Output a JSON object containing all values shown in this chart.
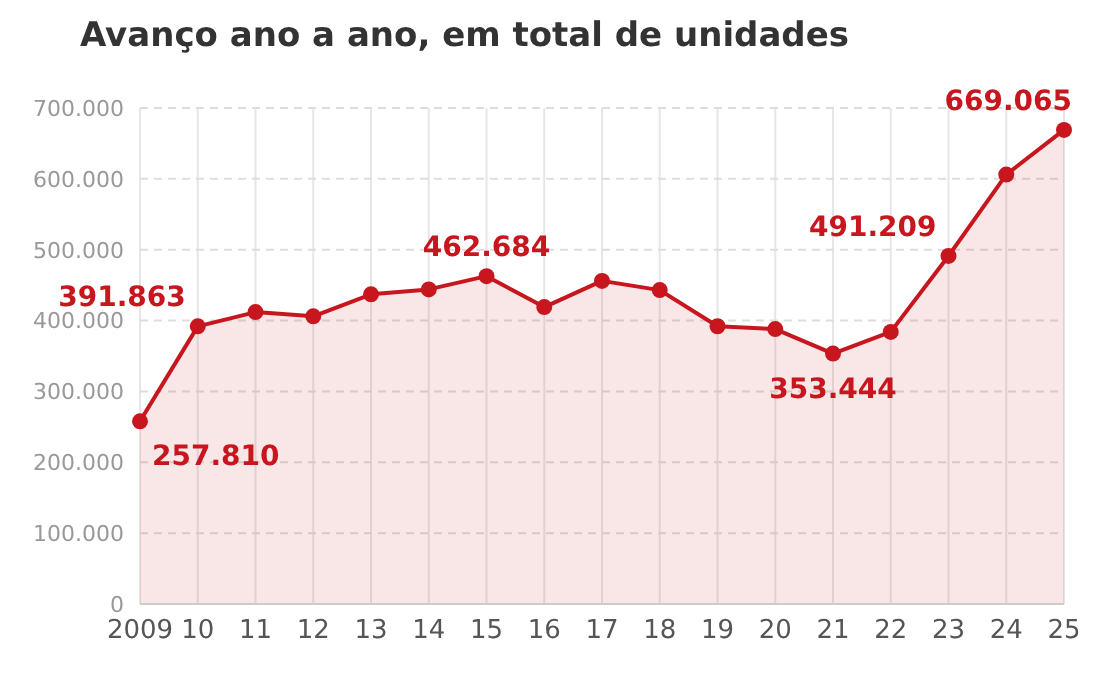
{
  "chart_data": {
    "type": "area",
    "title": "Avanço ano a ano, em total de unidades",
    "categories": [
      "2009",
      "10",
      "11",
      "12",
      "13",
      "14",
      "15",
      "16",
      "17",
      "18",
      "19",
      "20",
      "21",
      "22",
      "23",
      "24",
      "25"
    ],
    "series": [
      {
        "color": "#c8161e",
        "values": [
          257810,
          391863,
          412000,
          406000,
          437000,
          444000,
          462684,
          419000,
          456000,
          443000,
          392000,
          388000,
          353444,
          384000,
          491209,
          606000,
          669065
        ],
        "value_labels": [
          "257.810",
          "391.863",
          null,
          null,
          null,
          null,
          "462.684",
          null,
          null,
          null,
          null,
          null,
          "353.444",
          null,
          "491.209",
          null,
          "669.065"
        ]
      }
    ],
    "ylim": [
      0,
      700000
    ],
    "yticks": [
      {
        "value": 0,
        "label": "0"
      },
      {
        "value": 100000,
        "label": "100.000"
      },
      {
        "value": 200000,
        "label": "200.000"
      },
      {
        "value": 300000,
        "label": "300.000"
      },
      {
        "value": 400000,
        "label": "400.000"
      },
      {
        "value": 500000,
        "label": "500.000"
      },
      {
        "value": 600000,
        "label": "600.000"
      },
      {
        "value": 700000,
        "label": "700.000"
      }
    ],
    "grid": true,
    "marker": "circle"
  }
}
